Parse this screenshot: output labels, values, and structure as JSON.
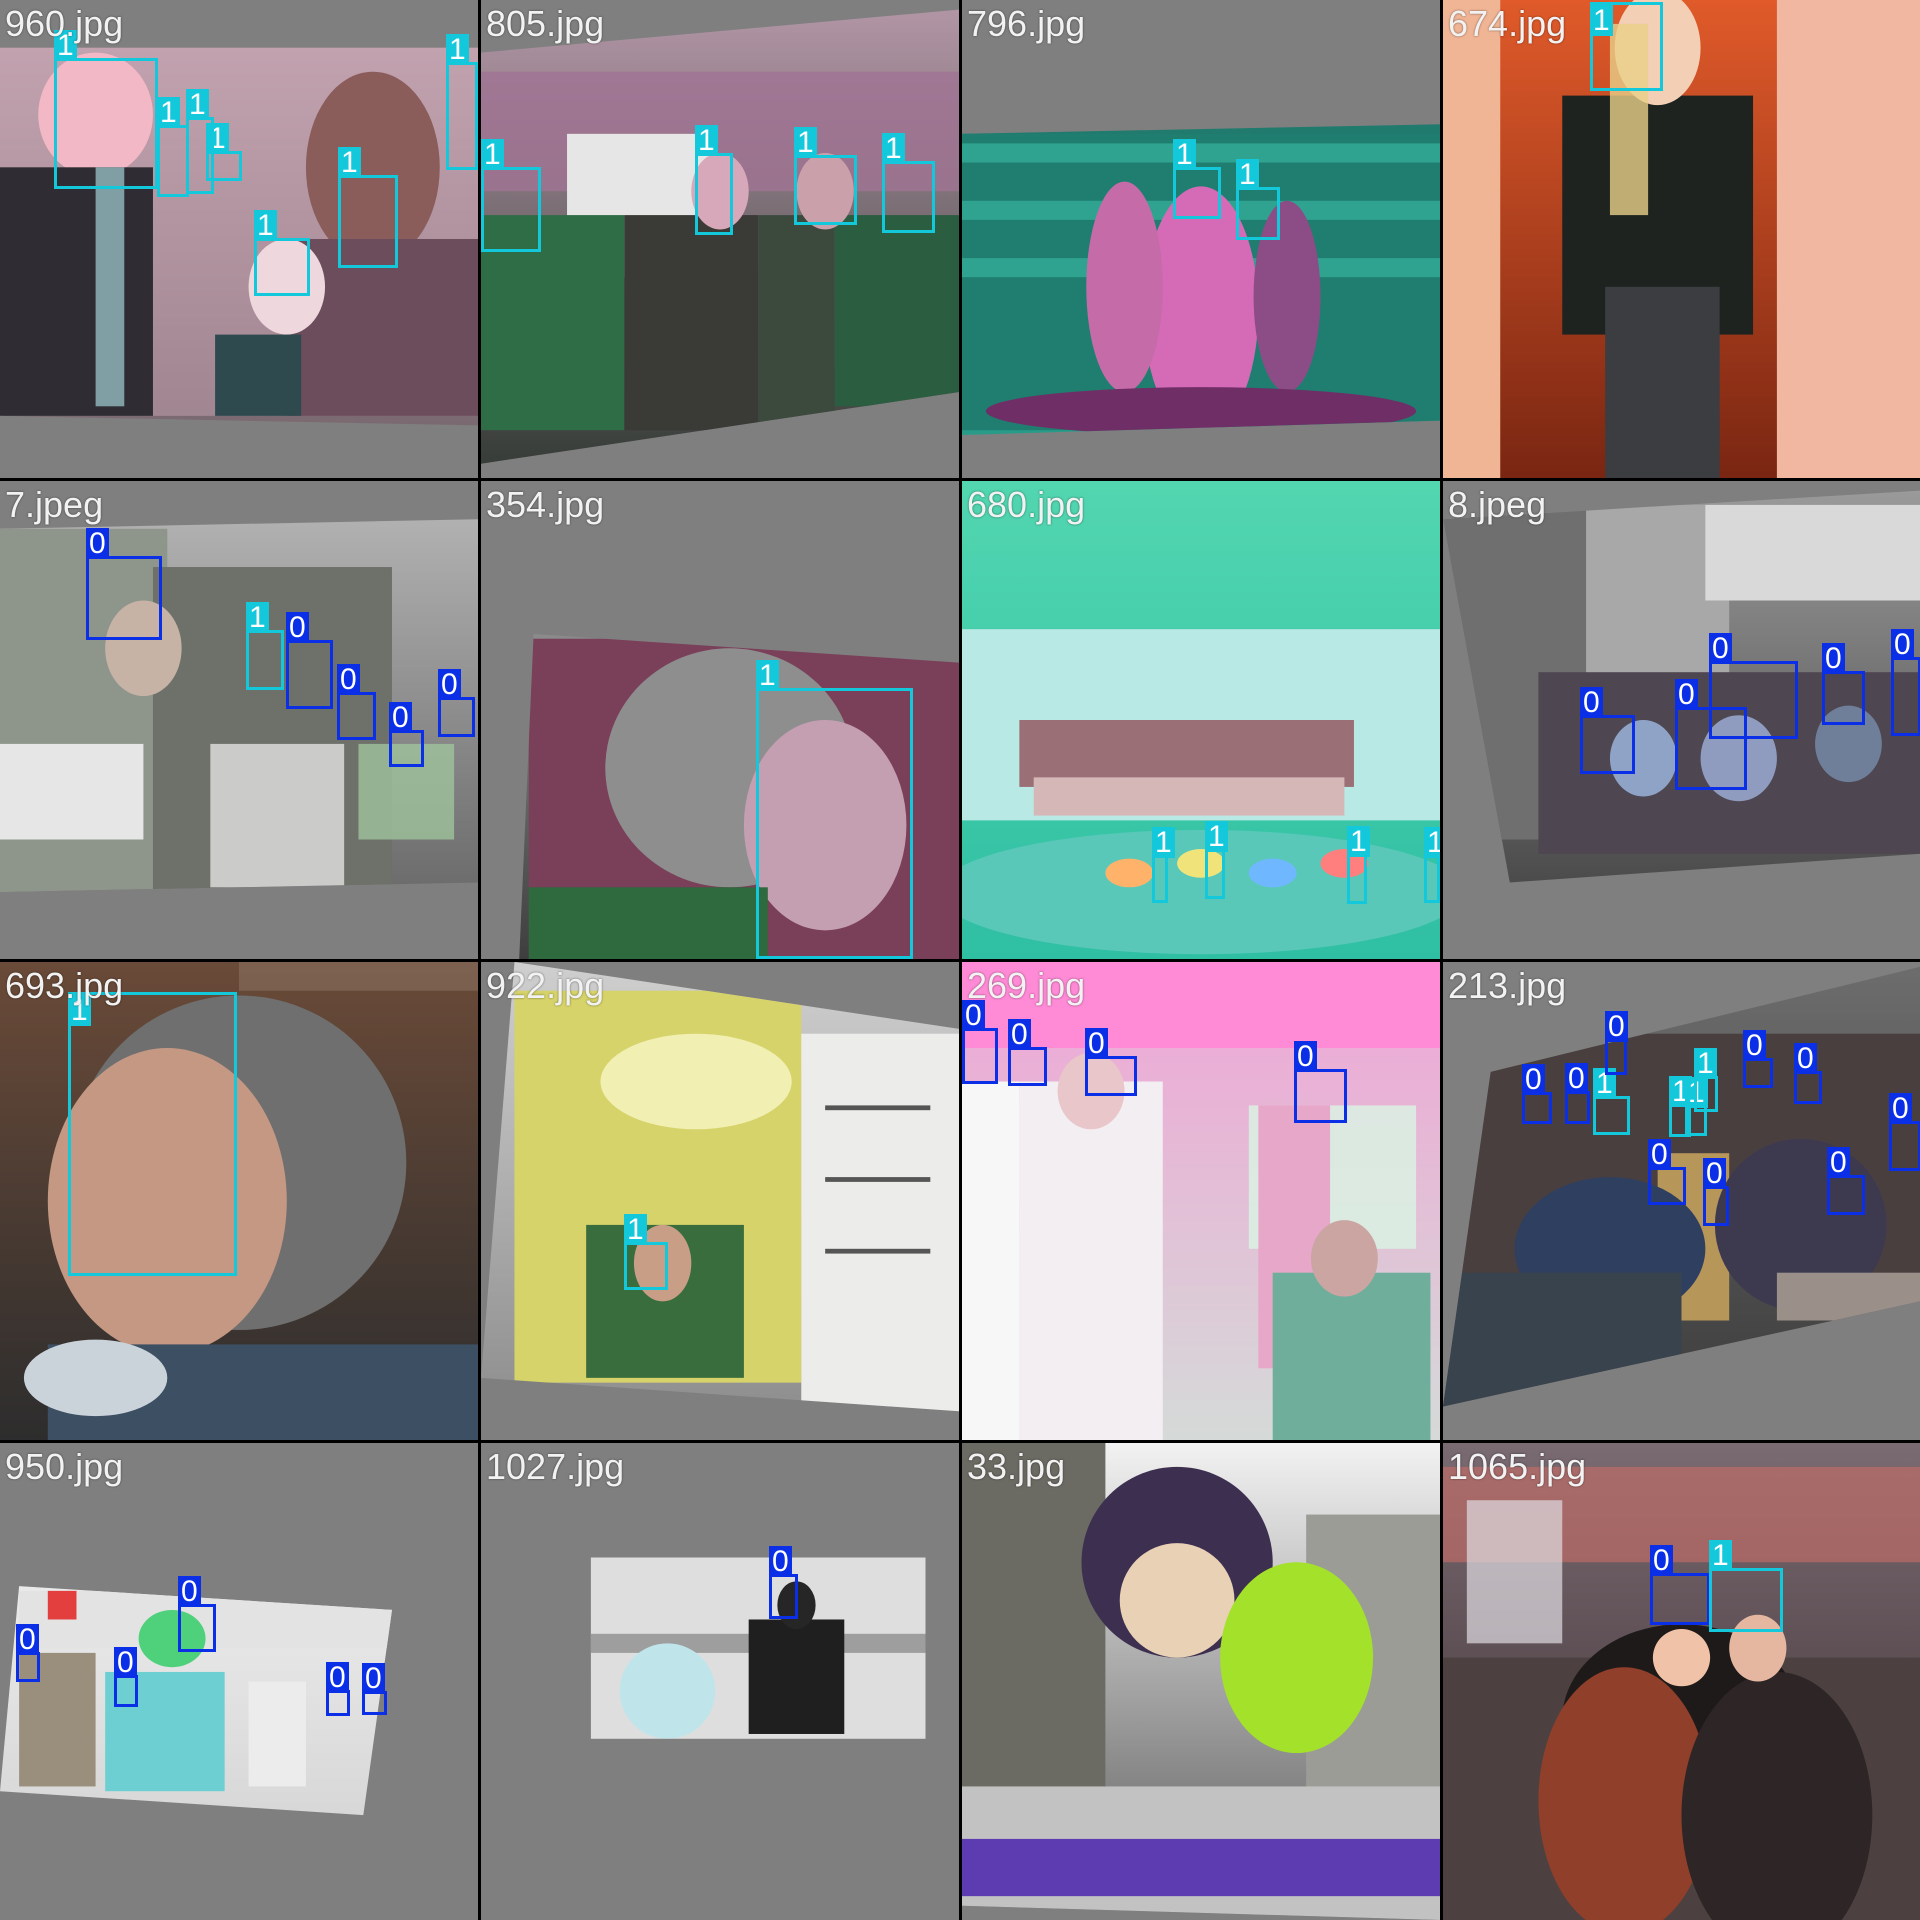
{
  "colors": {
    "class_0": "#0a2fe6",
    "class_1": "#14c8dc",
    "padding_gray": "#7f7f7f",
    "separator": "#000000"
  },
  "tiles": [
    {
      "filename": "960.jpg",
      "scene": "crowd-pink",
      "boxes": [
        {
          "label": "1",
          "cls": 1
        },
        {
          "label": "1",
          "cls": 1
        },
        {
          "label": "1",
          "cls": 1
        },
        {
          "label": "1",
          "cls": 1
        },
        {
          "label": "1",
          "cls": 1
        },
        {
          "label": "1",
          "cls": 1
        },
        {
          "label": "1",
          "cls": 1
        }
      ]
    },
    {
      "filename": "805.jpg",
      "scene": "street-green",
      "boxes": [
        {
          "label": "1",
          "cls": 1
        },
        {
          "label": "1",
          "cls": 1
        },
        {
          "label": "1",
          "cls": 1
        },
        {
          "label": "1",
          "cls": 1
        }
      ]
    },
    {
      "filename": "796.jpg",
      "scene": "stage-teal",
      "boxes": [
        {
          "label": "1",
          "cls": 1
        },
        {
          "label": "1",
          "cls": 1
        }
      ]
    },
    {
      "filename": "674.jpg",
      "scene": "hallway-orange",
      "boxes": [
        {
          "label": "1",
          "cls": 1
        }
      ]
    },
    {
      "filename": "7.jpeg",
      "scene": "collage-gray",
      "boxes": [
        {
          "label": "0",
          "cls": 0
        },
        {
          "label": "1",
          "cls": 1
        },
        {
          "label": "0",
          "cls": 0
        },
        {
          "label": "0",
          "cls": 0
        },
        {
          "label": "0",
          "cls": 0
        },
        {
          "label": "0",
          "cls": 0
        }
      ]
    },
    {
      "filename": "354.jpg",
      "scene": "engraving-magenta",
      "boxes": [
        {
          "label": "1",
          "cls": 1
        }
      ]
    },
    {
      "filename": "680.jpg",
      "scene": "pool-cyan",
      "boxes": [
        {
          "label": "1",
          "cls": 1
        },
        {
          "label": "1",
          "cls": 1
        },
        {
          "label": "1",
          "cls": 1
        },
        {
          "label": "1",
          "cls": 1
        }
      ]
    },
    {
      "filename": "8.jpeg",
      "scene": "collage-dark",
      "boxes": [
        {
          "label": "0",
          "cls": 0
        },
        {
          "label": "0",
          "cls": 0
        },
        {
          "label": "0",
          "cls": 0
        },
        {
          "label": "0",
          "cls": 0
        },
        {
          "label": "0",
          "cls": 0
        }
      ]
    },
    {
      "filename": "693.jpg",
      "scene": "engraving-brown",
      "boxes": [
        {
          "label": "1",
          "cls": 1
        }
      ]
    },
    {
      "filename": "922.jpg",
      "scene": "card-yellow",
      "boxes": [
        {
          "label": "1",
          "cls": 1
        }
      ]
    },
    {
      "filename": "269.jpg",
      "scene": "hospital-pink",
      "boxes": [
        {
          "label": "0",
          "cls": 0
        },
        {
          "label": "0",
          "cls": 0
        },
        {
          "label": "0",
          "cls": 0
        },
        {
          "label": "0",
          "cls": 0
        }
      ]
    },
    {
      "filename": "213.jpg",
      "scene": "crowd-dark",
      "boxes": [
        {
          "label": "0",
          "cls": 0
        },
        {
          "label": "0",
          "cls": 0
        },
        {
          "label": "1",
          "cls": 1
        },
        {
          "label": "0",
          "cls": 0
        },
        {
          "label": "0",
          "cls": 0
        },
        {
          "label": "1",
          "cls": 1
        },
        {
          "label": "1",
          "cls": 1
        },
        {
          "label": "1",
          "cls": 1
        },
        {
          "label": "0",
          "cls": 0
        },
        {
          "label": "0",
          "cls": 0
        },
        {
          "label": "0",
          "cls": 0
        },
        {
          "label": "0",
          "cls": 0
        },
        {
          "label": "0",
          "cls": 0
        }
      ]
    },
    {
      "filename": "950.jpg",
      "scene": "clinic-white",
      "boxes": [
        {
          "label": "0",
          "cls": 0
        },
        {
          "label": "0",
          "cls": 0
        },
        {
          "label": "0",
          "cls": 0
        },
        {
          "label": "0",
          "cls": 0
        },
        {
          "label": "0",
          "cls": 0
        }
      ]
    },
    {
      "filename": "1027.jpg",
      "scene": "bench-white",
      "boxes": [
        {
          "label": "0",
          "cls": 0
        }
      ]
    },
    {
      "filename": "33.jpg",
      "scene": "parade-city",
      "boxes": []
    },
    {
      "filename": "1065.jpg",
      "scene": "street-night",
      "boxes": [
        {
          "label": "0",
          "cls": 0
        },
        {
          "label": "1",
          "cls": 1
        }
      ]
    }
  ]
}
